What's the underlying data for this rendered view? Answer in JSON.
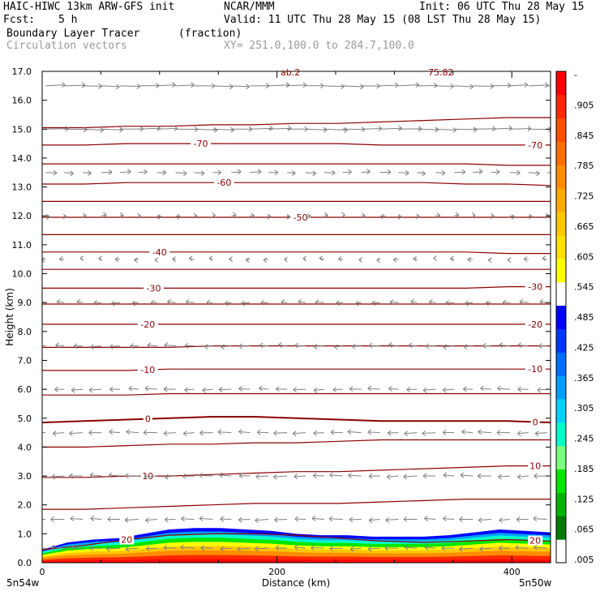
{
  "header": {
    "model": "HAIC-HIWC 13km ARW-GFS init",
    "center": "NCAR/MMM",
    "init": "Init: 06 UTC Thu 28 May 15",
    "fcst_label": "Fcst:",
    "fcst_value": "5 h",
    "valid": "Valid: 11 UTC Thu 28 May 15 (08 LST Thu 28 May 15)",
    "field": "Boundary Layer Tracer",
    "field_units": "(fraction)",
    "vectors": "Circulation vectors",
    "xsect": "XY= 251.0,100.0 to 284.7,100.0"
  },
  "colors": {
    "contour": "#8b0000",
    "vector": "#808080",
    "colorbar": [
      "#ffffff",
      "#007a00",
      "#00b400",
      "#00e600",
      "#7dff7d",
      "#00ffc8",
      "#00d2ff",
      "#00a0ff",
      "#006eff",
      "#0037ff",
      "#0000ff",
      "#ffffff",
      "#ffff00",
      "#ffe100",
      "#ffc800",
      "#ffaa00",
      "#ff8c00",
      "#ff6e00",
      "#ff5000",
      "#ff2800",
      "#ff0000"
    ]
  },
  "chart_data": {
    "type": "heatmap",
    "title": "Boundary Layer Tracer",
    "xlabel": "Distance (km)",
    "ylabel": "Height (km)",
    "xlim": [
      0,
      433
    ],
    "ylim": [
      0,
      17
    ],
    "x_ticks": [
      "0",
      "200",
      "400"
    ],
    "y_ticks": [
      "0.0",
      "1.0",
      "2.0",
      "3.0",
      "4.0",
      "5.0",
      "6.0",
      "7.0",
      "8.0",
      "9.0",
      "10.0",
      "11.0",
      "12.0",
      "13.0",
      "14.0",
      "15.0",
      "16.0",
      "17.0"
    ],
    "x_endpoints": [
      "5n54w",
      "5n50w"
    ],
    "colorbar_labels": [
      "-",
      ".905",
      ".845",
      ".785",
      ".725",
      ".665",
      ".605",
      ".545",
      ".485",
      ".425",
      ".365",
      ".305",
      ".245",
      ".185",
      ".125",
      ".065",
      ".005"
    ],
    "top_truncated_labels": [
      "ab.2",
      "75.82"
    ],
    "contours": [
      {
        "label": "20",
        "label_positions_km": [
          72,
          420
        ],
        "heights_km": [
          0.45,
          0.6,
          0.8,
          0.95,
          1.0,
          1.0,
          0.95,
          0.85,
          0.75,
          0.7,
          0.75,
          0.8,
          0.75
        ]
      },
      {
        "label": "",
        "label_positions_km": [],
        "heights_km": [
          1.85,
          1.85,
          1.9,
          1.95,
          2.0,
          2.05,
          2.05,
          2.05,
          2.1,
          2.15,
          2.2,
          2.2,
          2.2
        ]
      },
      {
        "label": "10",
        "label_positions_km": [
          90,
          420
        ],
        "heights_km": [
          2.95,
          2.95,
          3.0,
          3.0,
          3.05,
          3.1,
          3.15,
          3.15,
          3.2,
          3.25,
          3.3,
          3.35,
          3.35
        ]
      },
      {
        "label": "",
        "label_positions_km": [],
        "heights_km": [
          4.0,
          4.0,
          4.05,
          4.1,
          4.1,
          4.15,
          4.15,
          4.2,
          4.25,
          4.25,
          4.25,
          4.25,
          4.25
        ]
      },
      {
        "label": "0",
        "label_positions_km": [
          90,
          420
        ],
        "heights_km": [
          4.85,
          4.9,
          4.95,
          5.0,
          5.05,
          5.05,
          5.0,
          4.95,
          4.9,
          4.9,
          4.9,
          4.9,
          4.85
        ]
      },
      {
        "label": "",
        "label_positions_km": [],
        "heights_km": [
          5.8,
          5.8,
          5.8,
          5.85,
          5.85,
          5.85,
          5.85,
          5.85,
          5.85,
          5.85,
          5.85,
          5.85,
          5.85
        ]
      },
      {
        "label": "-10",
        "label_positions_km": [
          90,
          420
        ],
        "heights_km": [
          6.65,
          6.65,
          6.65,
          6.7,
          6.7,
          6.7,
          6.7,
          6.7,
          6.7,
          6.7,
          6.7,
          6.7,
          6.7
        ]
      },
      {
        "label": "",
        "label_positions_km": [],
        "heights_km": [
          7.45,
          7.45,
          7.45,
          7.45,
          7.5,
          7.5,
          7.5,
          7.5,
          7.5,
          7.5,
          7.5,
          7.5,
          7.5
        ]
      },
      {
        "label": "-20",
        "label_positions_km": [
          90,
          420
        ],
        "heights_km": [
          8.25,
          8.25,
          8.25,
          8.25,
          8.25,
          8.25,
          8.25,
          8.25,
          8.25,
          8.25,
          8.25,
          8.25,
          8.25
        ]
      },
      {
        "label": "",
        "label_positions_km": [],
        "heights_km": [
          8.95,
          8.95,
          8.95,
          8.95,
          8.95,
          8.95,
          8.95,
          8.95,
          8.95,
          8.95,
          8.95,
          8.95,
          8.95
        ]
      },
      {
        "label": "-30",
        "label_positions_km": [
          95,
          420
        ],
        "heights_km": [
          9.5,
          9.5,
          9.5,
          9.5,
          9.5,
          9.5,
          9.5,
          9.5,
          9.5,
          9.5,
          9.5,
          9.55,
          9.55
        ]
      },
      {
        "label": "",
        "label_positions_km": [],
        "heights_km": [
          10.15,
          10.15,
          10.15,
          10.15,
          10.15,
          10.15,
          10.15,
          10.15,
          10.15,
          10.15,
          10.15,
          10.15,
          10.15
        ]
      },
      {
        "label": "-40",
        "label_positions_km": [
          100
        ],
        "heights_km": [
          10.75,
          10.75,
          10.75,
          10.75,
          10.75,
          10.75,
          10.75,
          10.75,
          10.75,
          10.75,
          10.75,
          10.7,
          10.7
        ]
      },
      {
        "label": "",
        "label_positions_km": [],
        "heights_km": [
          11.35,
          11.35,
          11.35,
          11.35,
          11.35,
          11.35,
          11.35,
          11.35,
          11.35,
          11.35,
          11.35,
          11.35,
          11.35
        ]
      },
      {
        "label": "-50",
        "label_positions_km": [
          220
        ],
        "heights_km": [
          11.95,
          11.95,
          11.95,
          11.95,
          11.95,
          11.95,
          11.95,
          11.95,
          11.95,
          11.95,
          11.95,
          11.95,
          11.95
        ]
      },
      {
        "label": "",
        "label_positions_km": [],
        "heights_km": [
          12.5,
          12.5,
          12.5,
          12.5,
          12.5,
          12.5,
          12.5,
          12.5,
          12.5,
          12.5,
          12.5,
          12.5,
          12.5
        ]
      },
      {
        "label": "-60",
        "label_positions_km": [
          155
        ],
        "heights_km": [
          13.1,
          13.1,
          13.15,
          13.15,
          13.15,
          13.15,
          13.15,
          13.15,
          13.15,
          13.15,
          13.1,
          13.1,
          13.05
        ]
      },
      {
        "label": "",
        "label_positions_km": [],
        "heights_km": [
          13.8,
          13.8,
          13.8,
          13.8,
          13.8,
          13.8,
          13.8,
          13.8,
          13.8,
          13.8,
          13.8,
          13.75,
          13.75
        ]
      },
      {
        "label": "-70",
        "label_positions_km": [
          135,
          420
        ],
        "heights_km": [
          14.45,
          14.45,
          14.5,
          14.5,
          14.5,
          14.5,
          14.5,
          14.5,
          14.45,
          14.45,
          14.45,
          14.45,
          14.45
        ]
      },
      {
        "label": "",
        "label_positions_km": [],
        "heights_km": [
          15.05,
          15.05,
          15.1,
          15.1,
          15.15,
          15.15,
          15.2,
          15.2,
          15.25,
          15.3,
          15.35,
          15.4,
          15.4
        ]
      }
    ],
    "tracer_top_km": [
      0.45,
      0.7,
      0.8,
      0.85,
      1.0,
      1.15,
      1.2,
      1.2,
      1.15,
      1.1,
      1.0,
      0.95,
      0.95,
      0.9,
      0.9,
      0.9,
      0.95,
      1.05,
      1.15,
      1.1,
      1.05
    ],
    "vectors_ms": [
      {
        "z": 16.5,
        "u": 8
      },
      {
        "z": 15.0,
        "u": 9
      },
      {
        "z": 13.5,
        "u": 4
      },
      {
        "z": 12.0,
        "u": 1.5
      },
      {
        "z": 10.5,
        "u": -1.5
      },
      {
        "z": 9.0,
        "u": -3
      },
      {
        "z": 7.5,
        "u": -4
      },
      {
        "z": 6.0,
        "u": -4.5
      },
      {
        "z": 4.5,
        "u": -5
      },
      {
        "z": 3.0,
        "u": -5
      },
      {
        "z": 1.5,
        "u": -5
      },
      {
        "z": 0.5,
        "u": -5
      }
    ]
  }
}
